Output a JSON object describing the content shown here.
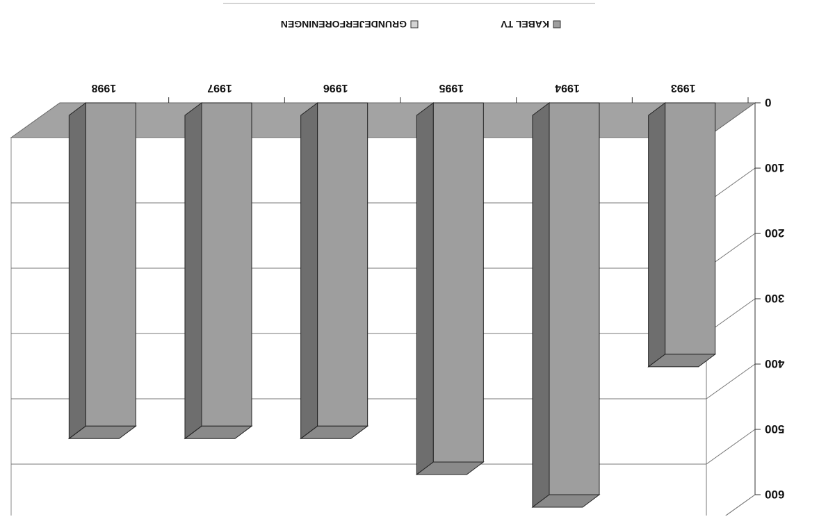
{
  "chart_data": {
    "type": "bar",
    "stacked": true,
    "three_d": true,
    "orientation": "rotated 180 degrees (image appears upside down)",
    "categories": [
      "1993",
      "1994",
      "1995",
      "1996",
      "1997",
      "1998"
    ],
    "series": [
      {
        "name": "KABEL TV",
        "values": [
          385,
          600,
          550,
          495,
          495,
          495
        ],
        "color": "#9c9c9c"
      },
      {
        "name": "GRUNDEJERFORENINGEN",
        "values": [
          0,
          0,
          0,
          0,
          0,
          0
        ],
        "color": "#d2d2d2"
      }
    ],
    "total_values": [
      385,
      600,
      550,
      495,
      495,
      495
    ],
    "y_ticks": [
      "0",
      "100",
      "200",
      "300",
      "400",
      "500",
      "600"
    ],
    "ylim": [
      0,
      600
    ],
    "grid": true,
    "legend_position": "top"
  }
}
